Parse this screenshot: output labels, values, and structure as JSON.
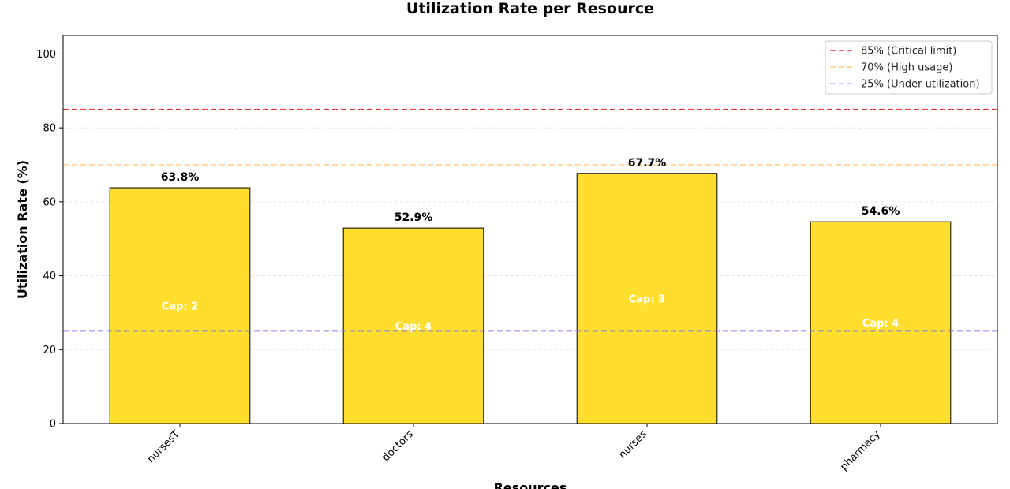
{
  "chart_data": {
    "type": "bar",
    "title": "Utilization Rate per Resource",
    "xlabel": "Resources",
    "ylabel": "Utilization Rate (%)",
    "ylim": [
      0,
      105
    ],
    "yticks": [
      0,
      20,
      40,
      60,
      80,
      100
    ],
    "grid": true,
    "categories": [
      "nursesT",
      "doctors",
      "nurses",
      "pharmacy"
    ],
    "values": [
      63.8,
      52.9,
      67.7,
      54.6
    ],
    "value_labels": [
      "63.8%",
      "52.9%",
      "67.7%",
      "54.6%"
    ],
    "capacities": [
      "Cap: 2",
      "Cap: 4",
      "Cap: 3",
      "Cap: 4"
    ],
    "bar_color": "#FFD700",
    "reference_lines": [
      {
        "value": 85,
        "label": "85% (Critical limit)",
        "color": "#E41A1C"
      },
      {
        "value": 70,
        "label": "70% (High usage)",
        "color": "#F5A623"
      },
      {
        "value": 25,
        "label": "25% (Under utilization)",
        "color": "#7B7BE8"
      }
    ],
    "legend_position": "top-right"
  }
}
